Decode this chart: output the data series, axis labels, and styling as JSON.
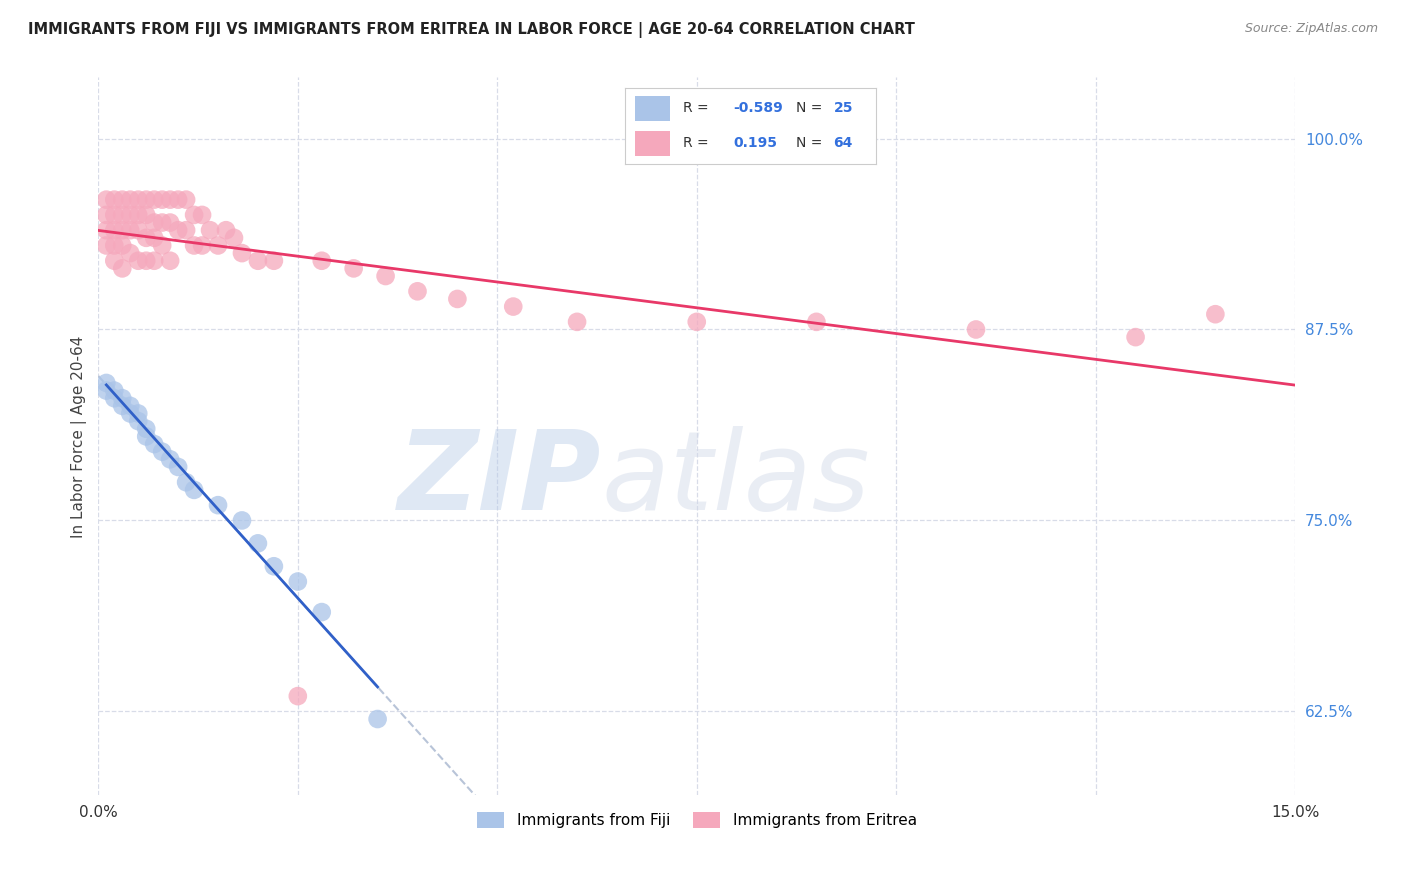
{
  "title": "IMMIGRANTS FROM FIJI VS IMMIGRANTS FROM ERITREA IN LABOR FORCE | AGE 20-64 CORRELATION CHART",
  "source": "Source: ZipAtlas.com",
  "ylabel": "In Labor Force | Age 20-64",
  "xlim": [
    0.0,
    0.15
  ],
  "ylim": [
    0.57,
    1.04
  ],
  "xticks": [
    0.0,
    0.025,
    0.05,
    0.075,
    0.1,
    0.125,
    0.15
  ],
  "xticklabels": [
    "0.0%",
    "",
    "",
    "",
    "",
    "",
    "15.0%"
  ],
  "ytick_right_labels": [
    "100.0%",
    "87.5%",
    "75.0%",
    "62.5%"
  ],
  "ytick_right_values": [
    1.0,
    0.875,
    0.75,
    0.625
  ],
  "fiji_color": "#aac4e8",
  "eritrea_color": "#f5a8bc",
  "fiji_line_color": "#3060c8",
  "eritrea_line_color": "#e83868",
  "dashed_line_color": "#b8c4d8",
  "R_fiji": -0.589,
  "N_fiji": 25,
  "R_eritrea": 0.195,
  "N_eritrea": 64,
  "fiji_x": [
    0.001,
    0.001,
    0.002,
    0.002,
    0.003,
    0.003,
    0.004,
    0.004,
    0.005,
    0.005,
    0.006,
    0.006,
    0.007,
    0.008,
    0.009,
    0.01,
    0.011,
    0.012,
    0.015,
    0.018,
    0.02,
    0.022,
    0.025,
    0.028,
    0.035
  ],
  "fiji_y": [
    0.84,
    0.835,
    0.835,
    0.83,
    0.83,
    0.825,
    0.825,
    0.82,
    0.82,
    0.815,
    0.81,
    0.805,
    0.8,
    0.795,
    0.79,
    0.785,
    0.775,
    0.77,
    0.76,
    0.75,
    0.735,
    0.72,
    0.71,
    0.69,
    0.62
  ],
  "eritrea_x": [
    0.001,
    0.001,
    0.001,
    0.001,
    0.002,
    0.002,
    0.002,
    0.002,
    0.002,
    0.003,
    0.003,
    0.003,
    0.003,
    0.003,
    0.004,
    0.004,
    0.004,
    0.004,
    0.005,
    0.005,
    0.005,
    0.005,
    0.006,
    0.006,
    0.006,
    0.006,
    0.007,
    0.007,
    0.007,
    0.007,
    0.008,
    0.008,
    0.008,
    0.009,
    0.009,
    0.009,
    0.01,
    0.01,
    0.011,
    0.011,
    0.012,
    0.012,
    0.013,
    0.013,
    0.014,
    0.015,
    0.016,
    0.017,
    0.018,
    0.02,
    0.022,
    0.025,
    0.028,
    0.032,
    0.036,
    0.04,
    0.045,
    0.052,
    0.06,
    0.075,
    0.09,
    0.11,
    0.13,
    0.14
  ],
  "eritrea_y": [
    0.96,
    0.95,
    0.94,
    0.93,
    0.96,
    0.95,
    0.94,
    0.93,
    0.92,
    0.96,
    0.95,
    0.94,
    0.93,
    0.915,
    0.96,
    0.95,
    0.94,
    0.925,
    0.96,
    0.95,
    0.94,
    0.92,
    0.96,
    0.95,
    0.935,
    0.92,
    0.96,
    0.945,
    0.935,
    0.92,
    0.96,
    0.945,
    0.93,
    0.96,
    0.945,
    0.92,
    0.96,
    0.94,
    0.96,
    0.94,
    0.95,
    0.93,
    0.95,
    0.93,
    0.94,
    0.93,
    0.94,
    0.935,
    0.925,
    0.92,
    0.92,
    0.635,
    0.92,
    0.915,
    0.91,
    0.9,
    0.895,
    0.89,
    0.88,
    0.88,
    0.88,
    0.875,
    0.87,
    0.885
  ],
  "watermark_zip": "ZIP",
  "watermark_atlas": "atlas",
  "watermark_color": "#ccd8f0",
  "background_color": "#ffffff",
  "grid_color": "#d8dce8",
  "title_color": "#222222",
  "source_color": "#888888",
  "ylabel_color": "#444444",
  "ytick_color": "#4488dd",
  "legend_text_color": "#333333",
  "legend_value_color": "#3370dd"
}
